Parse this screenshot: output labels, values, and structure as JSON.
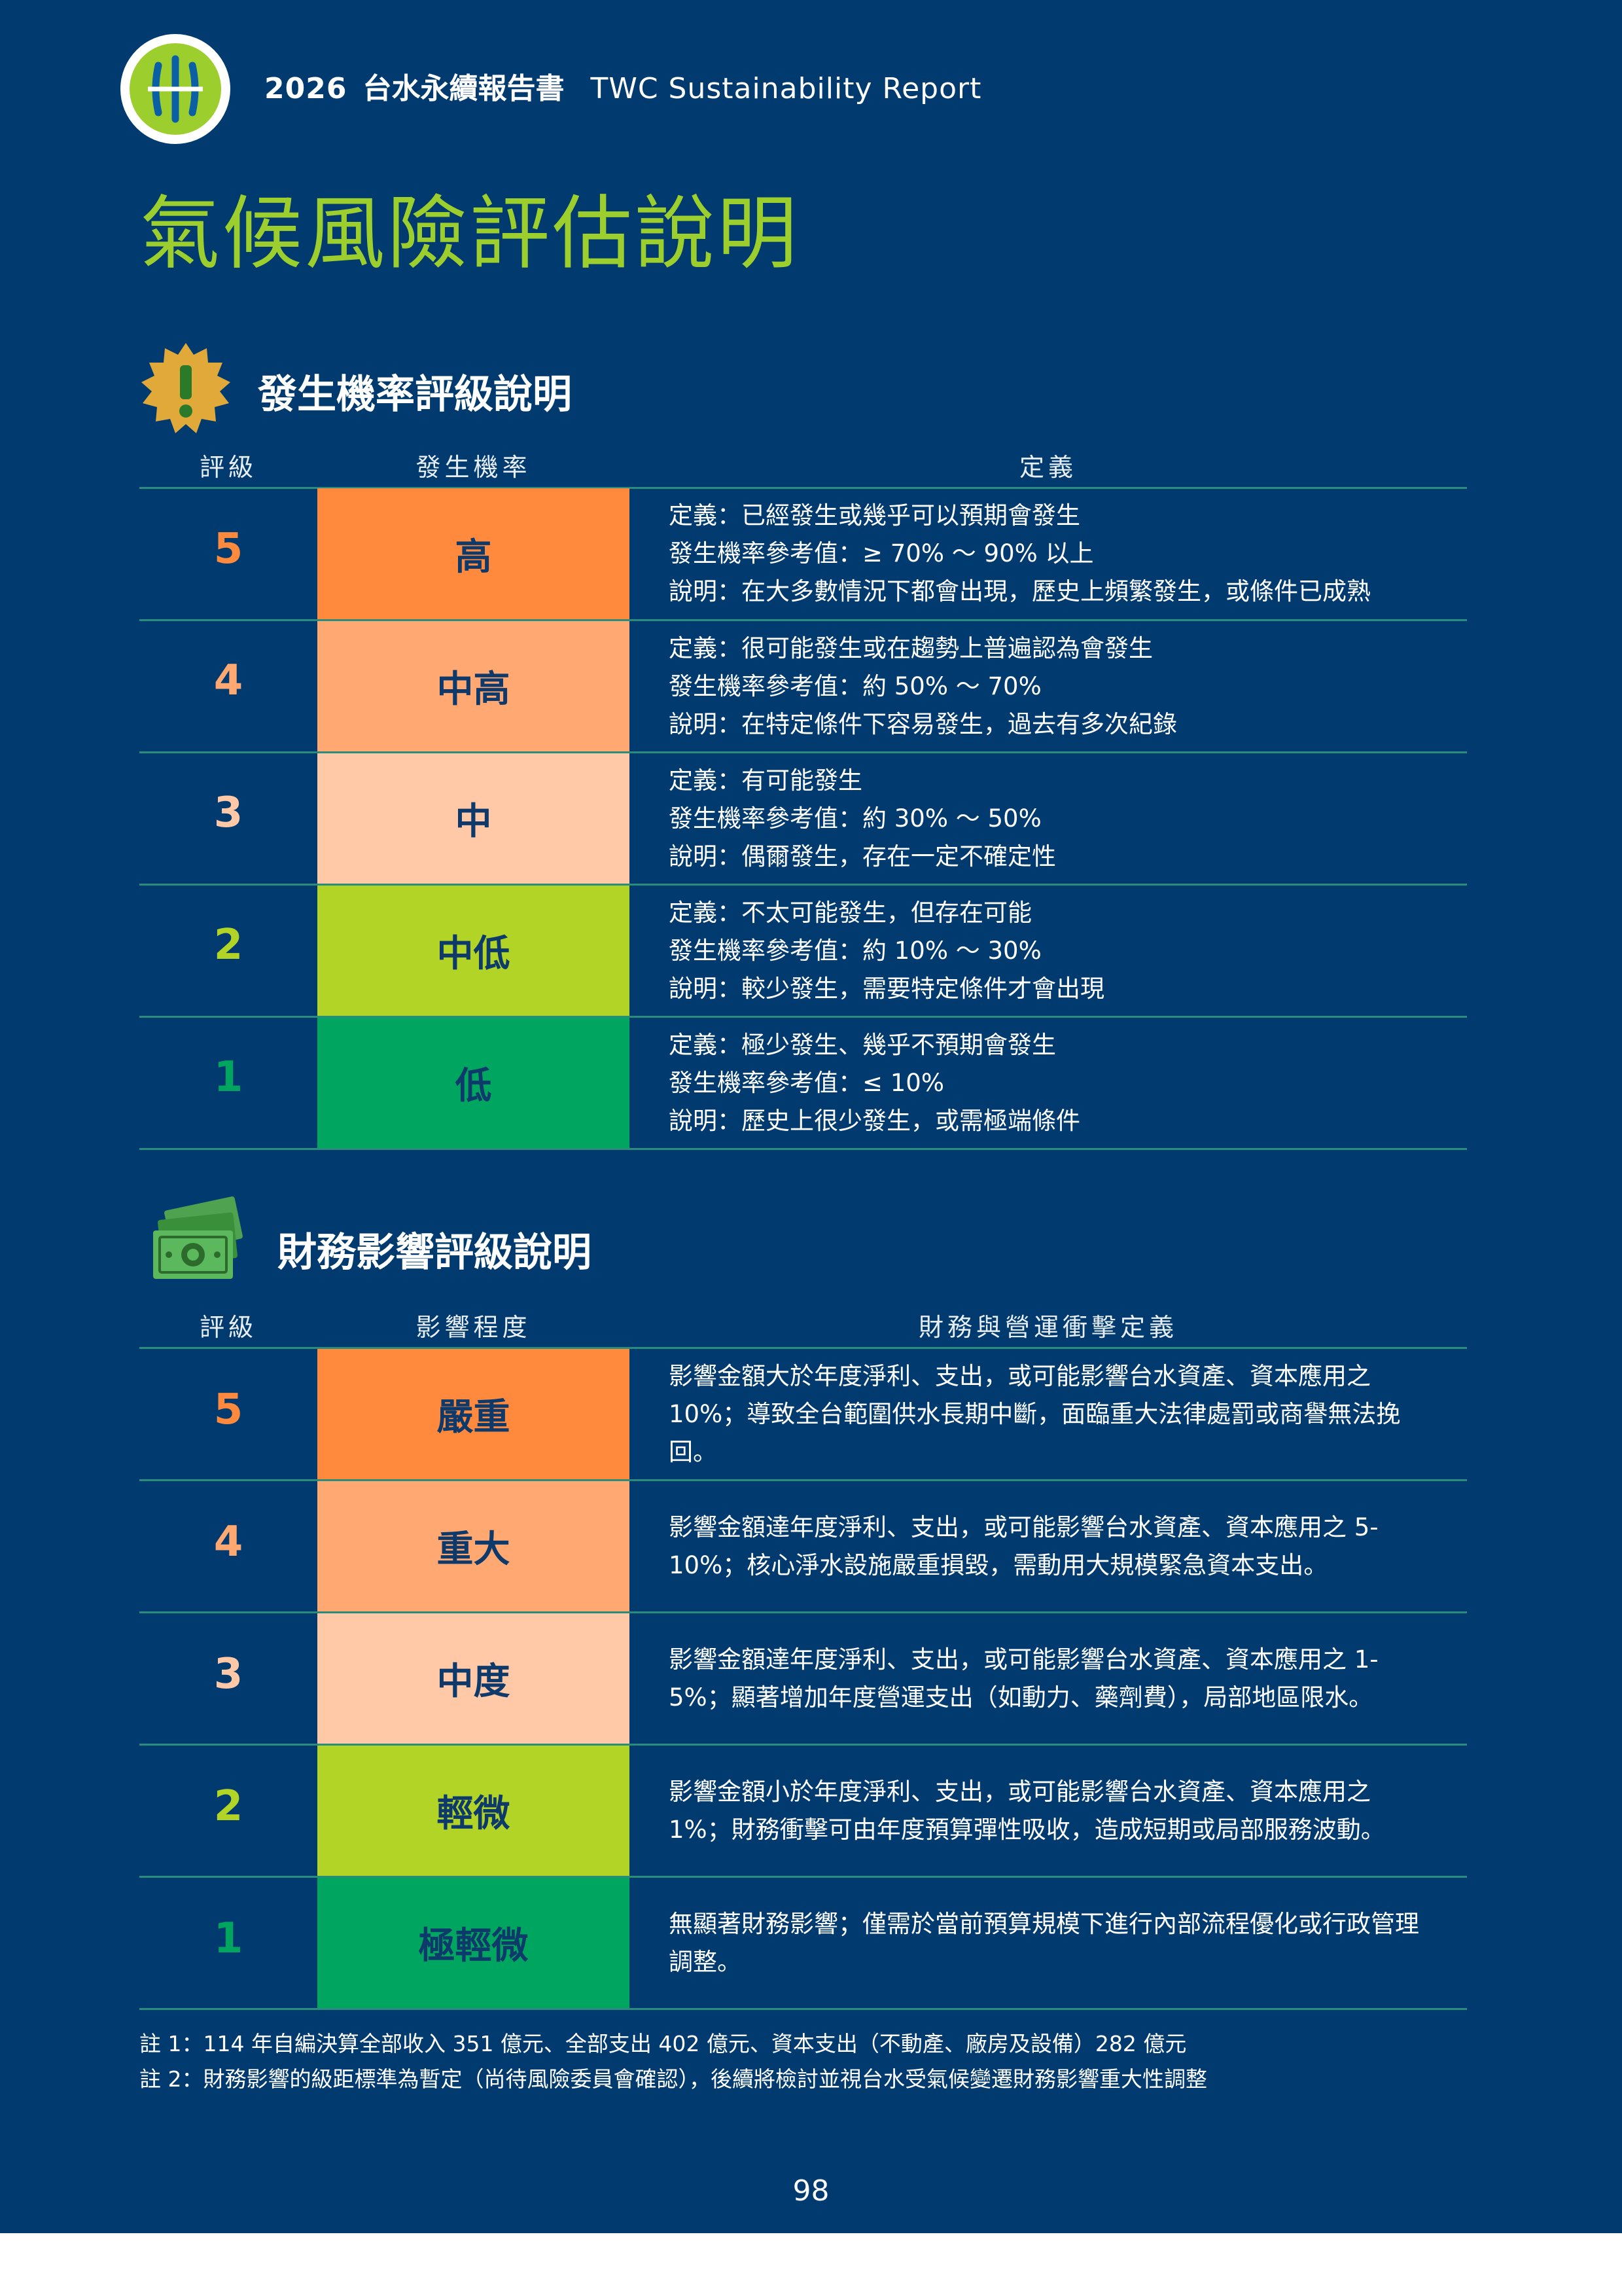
{
  "header": {
    "year": "2026",
    "title_zh": "台水永續報告書",
    "title_en": "TWC Sustainability Report",
    "logo_icon": "twc-logo"
  },
  "page_title": "氣候風險評估說明",
  "colors": {
    "background": "#003a6e",
    "accent_green": "#9ccf2e",
    "level5": "#ff8a3d",
    "level4": "#ffa872",
    "level3": "#ffc9a8",
    "level2": "#b1d427",
    "level1": "#00a65f"
  },
  "probability": {
    "icon": "warning-burst-icon",
    "title": "發生機率評級說明",
    "headers": [
      "評級",
      "發生機率",
      "定義"
    ],
    "rows": [
      {
        "grade": "5",
        "level": "高",
        "lines": [
          "定義：已經發生或幾乎可以預期會發生",
          "發生機率參考值：≥ 70% ～ 90% 以上",
          "說明：在大多數情況下都會出現，歷史上頻繁發生，或條件已成熟"
        ]
      },
      {
        "grade": "4",
        "level": "中高",
        "lines": [
          "定義：很可能發生或在趨勢上普遍認為會發生",
          "發生機率參考值：約 50% ～ 70%",
          "說明：在特定條件下容易發生，過去有多次紀錄"
        ]
      },
      {
        "grade": "3",
        "level": "中",
        "lines": [
          "定義：有可能發生",
          "發生機率參考值：約 30% ～ 50%",
          "說明：偶爾發生，存在一定不確定性"
        ]
      },
      {
        "grade": "2",
        "level": "中低",
        "lines": [
          "定義：不太可能發生，但存在可能",
          "發生機率參考值：約 10% ～ 30%",
          "說明：較少發生，需要特定條件才會出現"
        ]
      },
      {
        "grade": "1",
        "level": "低",
        "lines": [
          "定義：極少發生、幾乎不預期會發生",
          "發生機率參考值：≤ 10%",
          "說明：歷史上很少發生，或需極端條件"
        ]
      }
    ]
  },
  "financial": {
    "icon": "money-bills-icon",
    "title": "財務影響評級說明",
    "headers": [
      "評級",
      "影響程度",
      "財務與營運衝擊定義"
    ],
    "rows": [
      {
        "grade": "5",
        "level": "嚴重",
        "text": "影響金額大於年度淨利、支出，或可能影響台水資產、資本應用之 10%；導致全台範圍供水長期中斷，面臨重大法律處罰或商譽無法挽回。"
      },
      {
        "grade": "4",
        "level": "重大",
        "text": "影響金額達年度淨利、支出，或可能影響台水資產、資本應用之 5-10%；核心淨水設施嚴重損毀，需動用大規模緊急資本支出。"
      },
      {
        "grade": "3",
        "level": "中度",
        "text": "影響金額達年度淨利、支出，或可能影響台水資產、資本應用之 1-5%；顯著增加年度營運支出（如動力、藥劑費），局部地區限水。"
      },
      {
        "grade": "2",
        "level": "輕微",
        "text": "影響金額小於年度淨利、支出，或可能影響台水資產、資本應用之 1%；財務衝擊可由年度預算彈性吸收，造成短期或局部服務波動。"
      },
      {
        "grade": "1",
        "level": "極輕微",
        "text": "無顯著財務影響；僅需於當前預算規模下進行內部流程優化或行政管理調整。"
      }
    ]
  },
  "notes": [
    "註 1：114 年自編決算全部收入 351 億元、全部支出 402 億元、資本支出（不動產、廠房及設備）282 億元",
    "註 2：財務影響的級距標準為暫定（尚待風險委員會確認），後續將檢討並視台水受氣候變遷財務影響重大性調整"
  ],
  "page_number": "98"
}
